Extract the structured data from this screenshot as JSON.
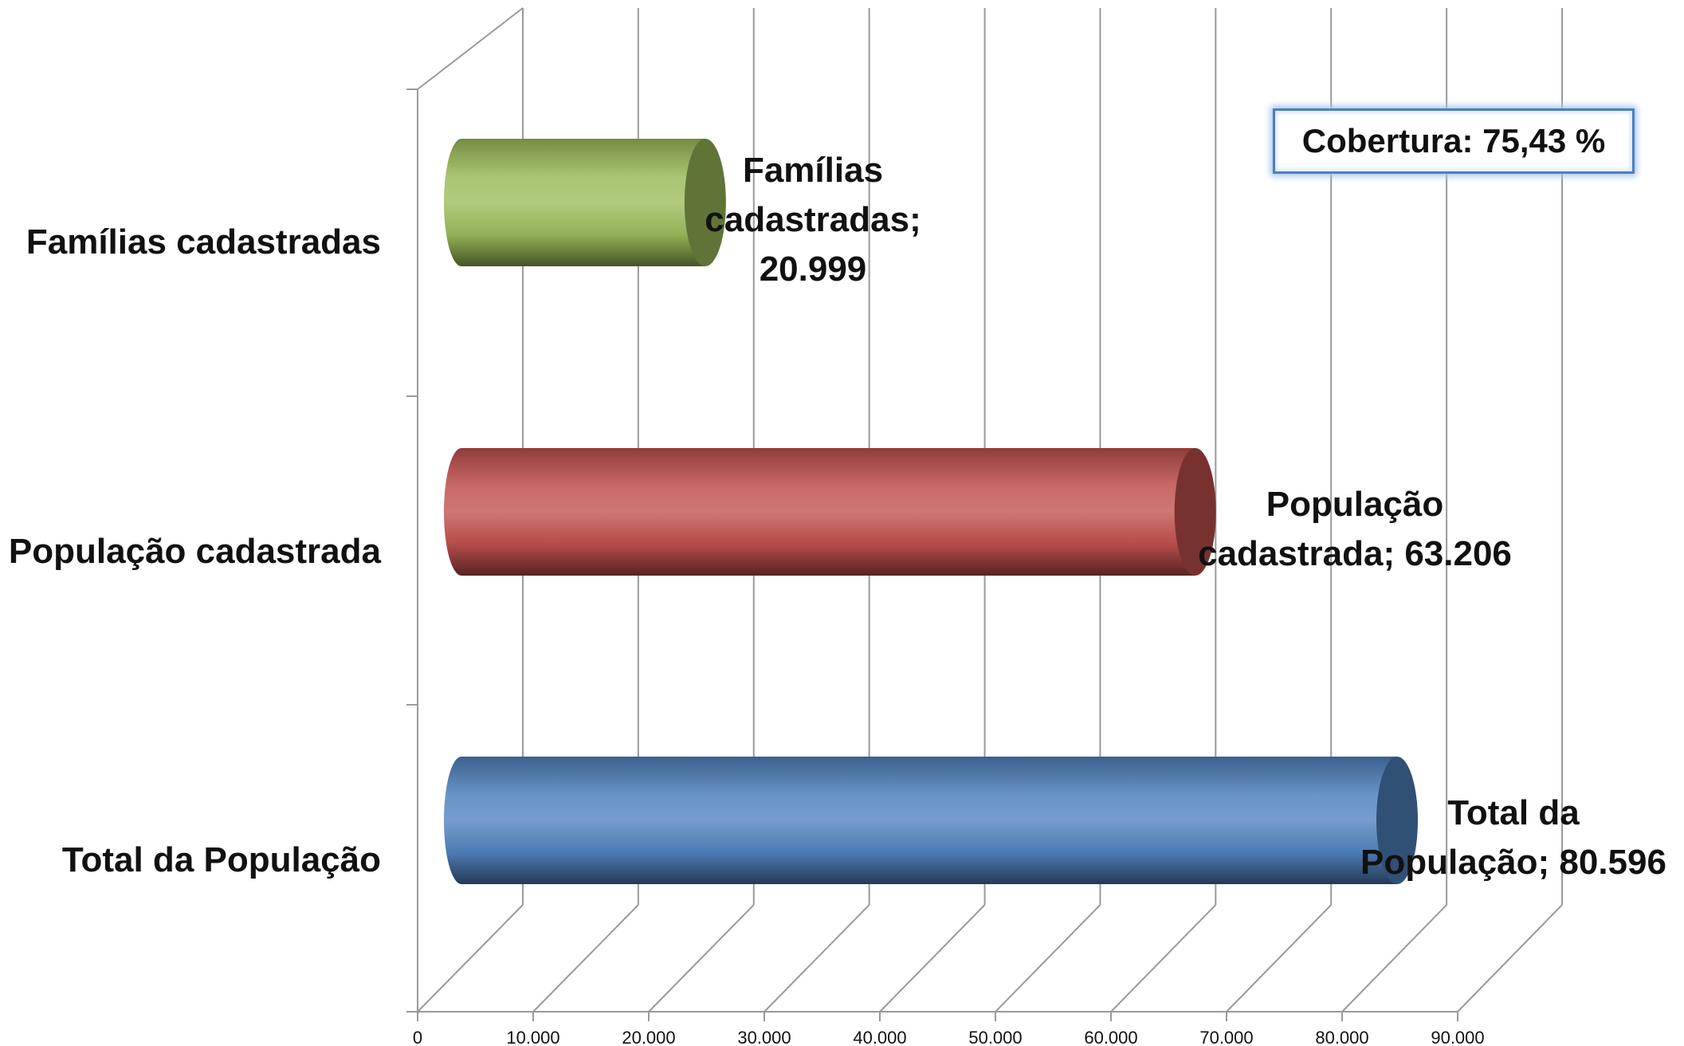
{
  "chart_data": {
    "type": "bar",
    "orientation": "horizontal",
    "style": "3d-cylinder",
    "categories": [
      "Famílias cadastradas",
      "População cadastrada",
      "Total da População"
    ],
    "values": [
      20999,
      63206,
      80596
    ],
    "data_labels": [
      [
        "Famílias",
        "cadastradas;",
        "20.999"
      ],
      [
        "População",
        "cadastrada; 63.206"
      ],
      [
        "Total da",
        "População; 80.596"
      ]
    ],
    "colors": [
      "#9bbb59",
      "#c0504d",
      "#4f81bd"
    ],
    "xlim": [
      0,
      90000
    ],
    "x_ticks": [
      0,
      10000,
      20000,
      30000,
      40000,
      50000,
      60000,
      70000,
      80000,
      90000
    ],
    "x_tick_labels": [
      "0",
      "10.000",
      "20.000",
      "30.000",
      "40.000",
      "50.000",
      "60.000",
      "70.000",
      "80.000",
      "90.000"
    ],
    "title": "",
    "xlabel": "",
    "ylabel": "",
    "grid": true,
    "legend": "none",
    "annotation": "Cobertura: 75,43 %"
  }
}
